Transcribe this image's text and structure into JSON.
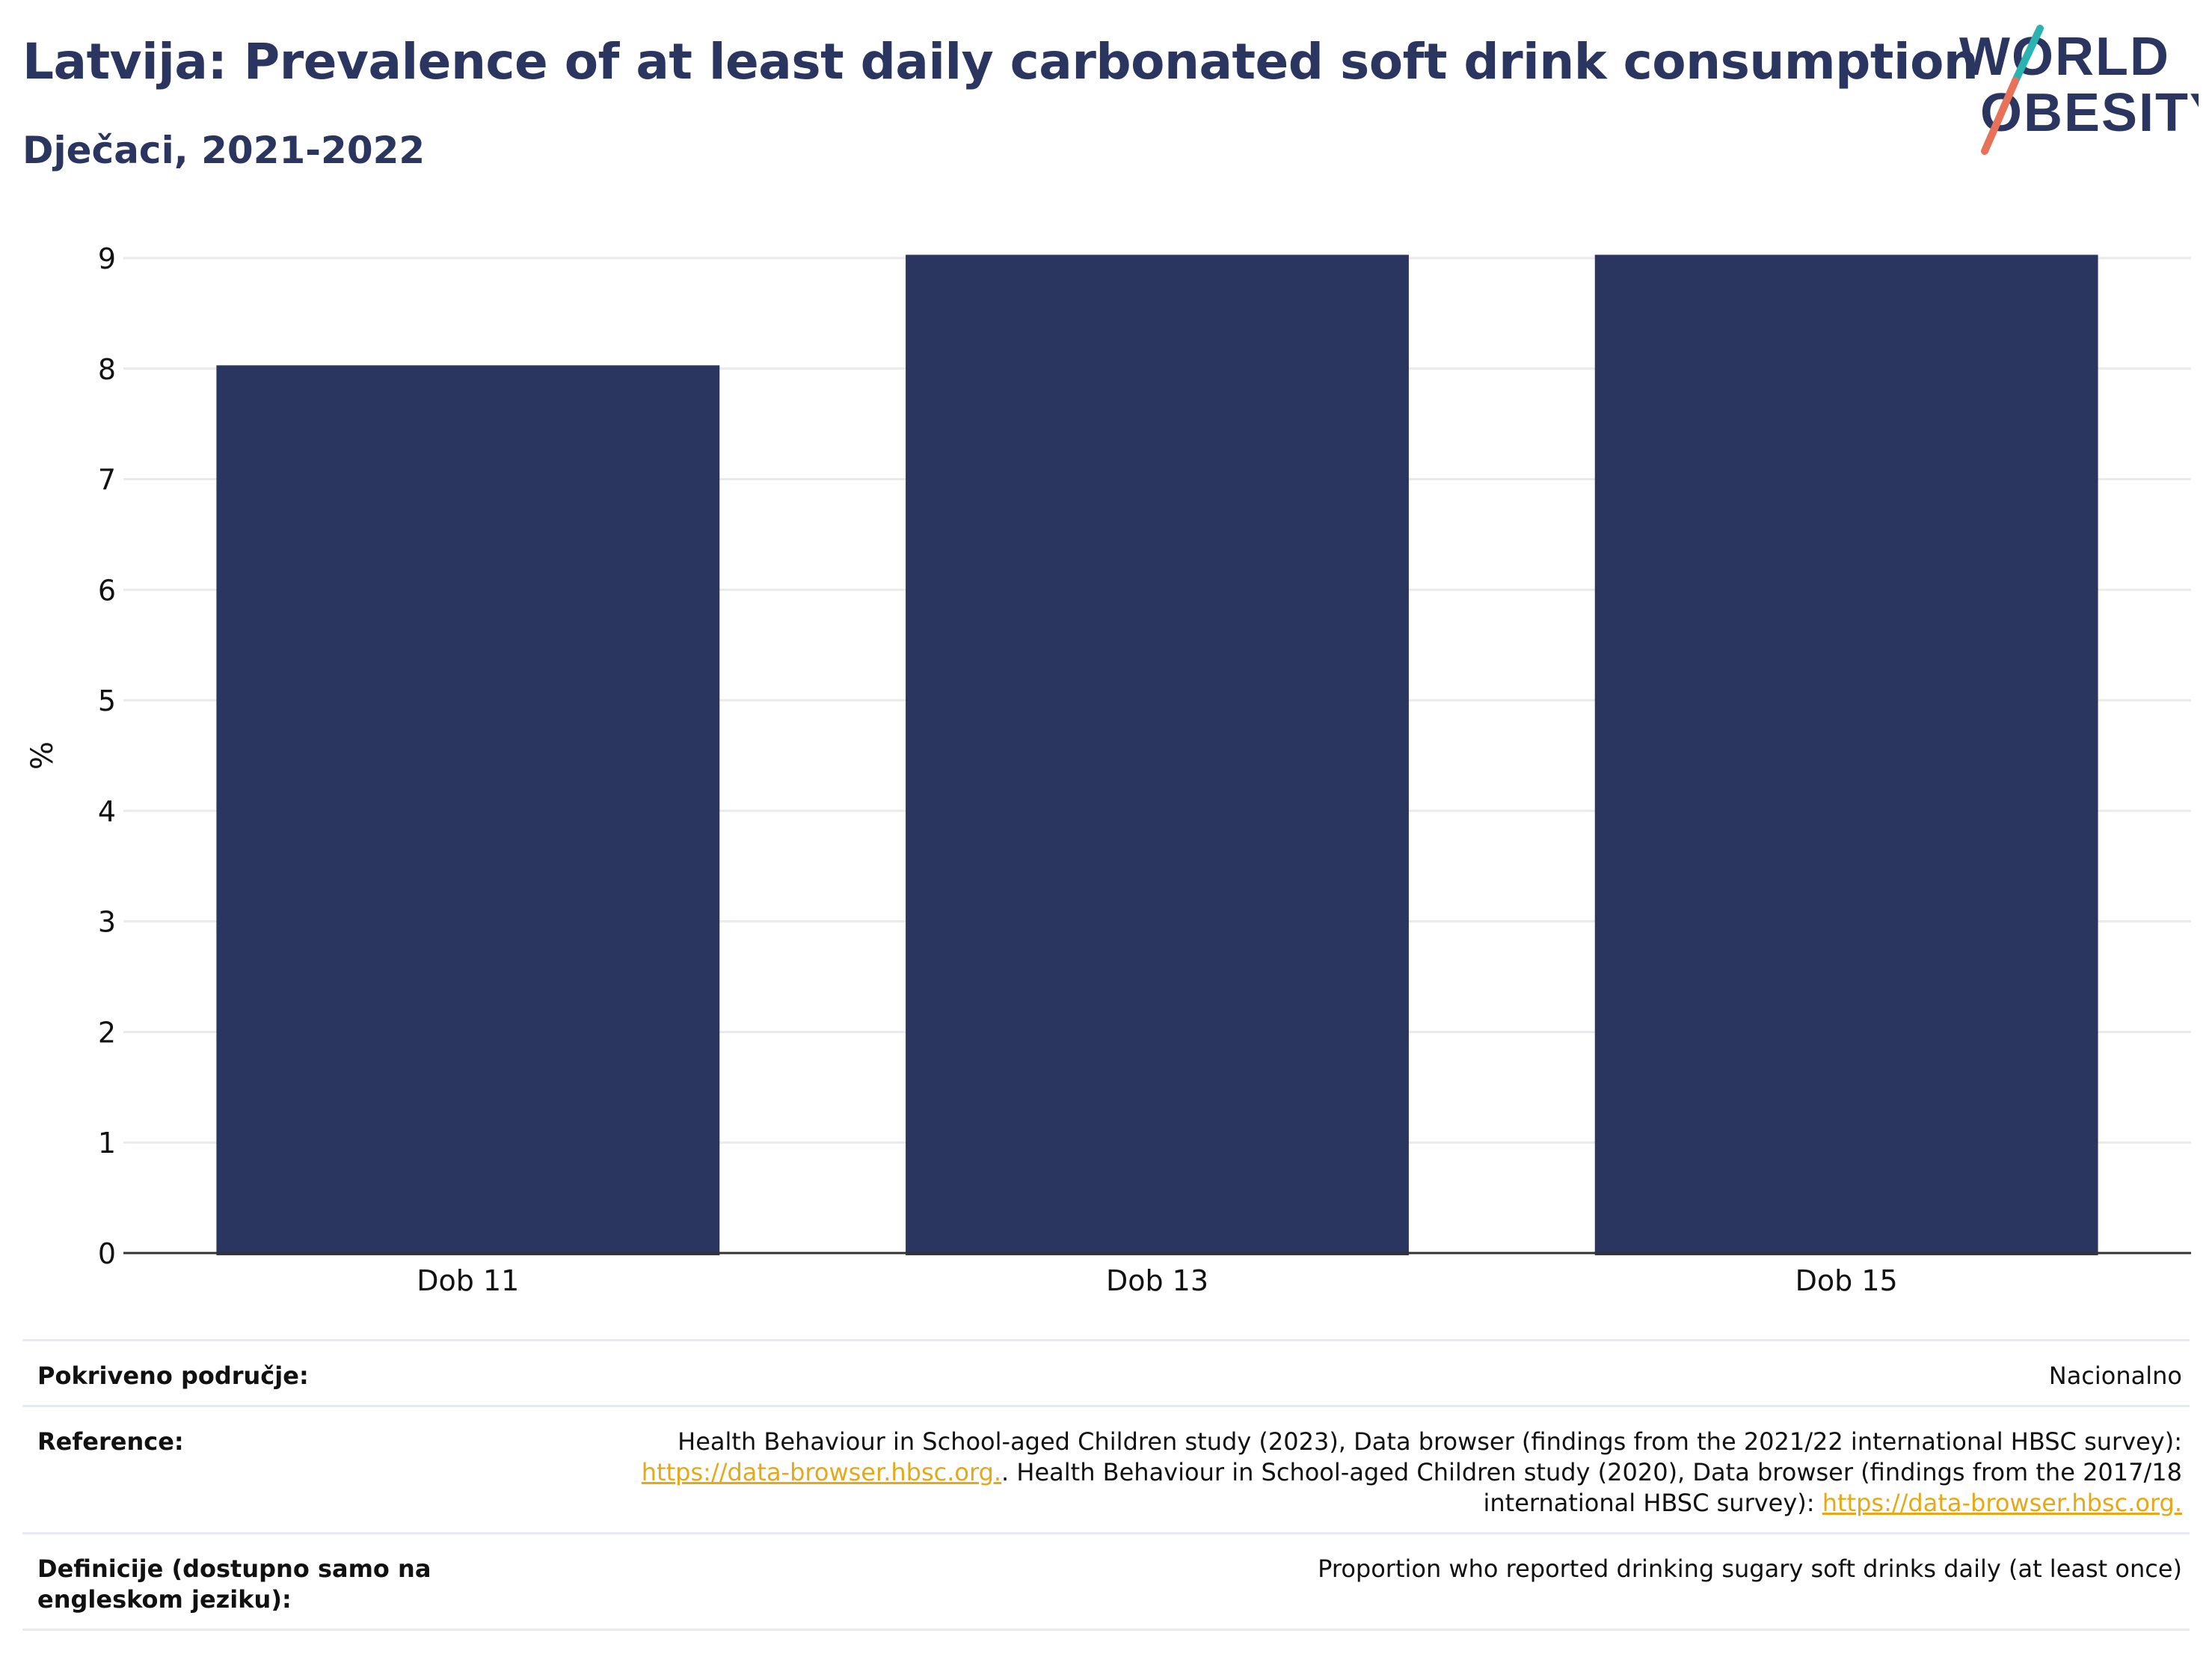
{
  "header": {
    "title": "Latvija: Prevalence of at least daily carbonated soft drink consumption",
    "subtitle": "Dječaci, 2021-2022"
  },
  "logo": {
    "line1": "WORLD",
    "line2": "OBESITY",
    "accent_colors": [
      "#2bb3b1",
      "#e8715a"
    ]
  },
  "chart_data": {
    "type": "bar",
    "categories": [
      "Dob 11",
      "Dob 13",
      "Dob 15"
    ],
    "values": [
      8.03,
      9.03,
      9.03
    ],
    "title": "Latvija: Prevalence of at least daily carbonated soft drink consumption",
    "subtitle": "Dječaci, 2021-2022",
    "xlabel": "",
    "ylabel": "%",
    "ylim": [
      0,
      9
    ],
    "yticks": [
      0,
      1,
      2,
      3,
      4,
      5,
      6,
      7,
      8,
      9
    ],
    "grid": true,
    "legend": "none",
    "bar_color": "#2a3560"
  },
  "meta": {
    "coverage": {
      "label": "Pokriveno područje:",
      "value": "Nacionalno"
    },
    "references": {
      "label": "Reference:",
      "text1": "Health Behaviour in School-aged Children study (2023), Data browser (findings from the 2021/22 international HBSC survey):",
      "link1": "https://data-browser.hbsc.org.",
      "text2": ". Health Behaviour in School-aged Children study (2020), Data browser (findings from the 2017/18 international HBSC survey):",
      "link2": "https://data-browser.hbsc.org."
    },
    "definitions": {
      "label": "Definicije (dostupno samo na engleskom jeziku):",
      "value": "Proportion who reported drinking sugary soft drinks daily (at least once)"
    }
  }
}
